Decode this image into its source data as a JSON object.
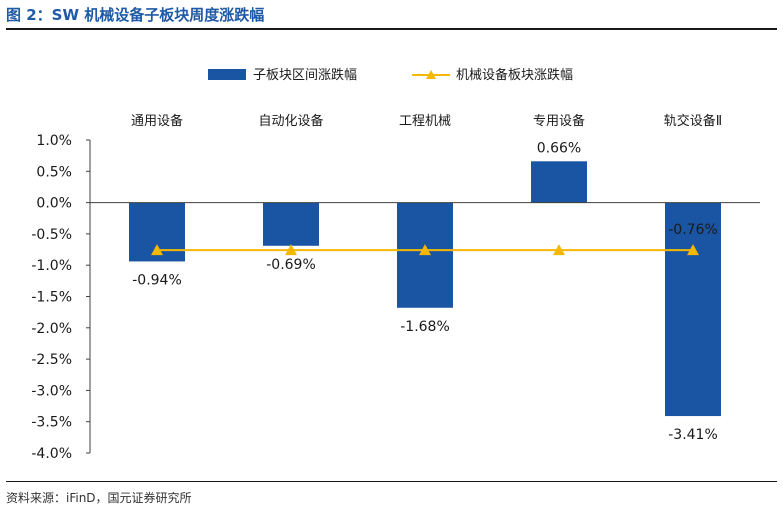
{
  "figure": {
    "title": "图 2：SW 机械设备子板块周度涨跌幅",
    "source": "资料来源：iFinD，国元证券研究所"
  },
  "colors": {
    "bar": "#1a55a3",
    "line": "#f5b800",
    "title": "#1f5aa6",
    "axis": "#404040"
  },
  "chart_data": {
    "type": "bar",
    "title": "",
    "xlabel": "",
    "ylabel": "",
    "categories": [
      "通用设备",
      "自动化设备",
      "工程机械",
      "专用设备",
      "轨交设备Ⅱ"
    ],
    "series": [
      {
        "name": "子板块区间涨跌幅",
        "type": "bar",
        "values": [
          -0.94,
          -0.69,
          -1.68,
          0.66,
          -3.41
        ],
        "labels": [
          "-0.94%",
          "-0.69%",
          "-1.68%",
          "0.66%",
          "-3.41%"
        ]
      },
      {
        "name": "机械设备板块涨跌幅",
        "type": "line",
        "values": [
          -0.76,
          -0.76,
          -0.76,
          -0.76,
          -0.76
        ],
        "labels": [
          "",
          "",
          "",
          "",
          "-0.76%"
        ]
      }
    ],
    "ylim": [
      -4.0,
      1.0
    ],
    "yticks": [
      1.0,
      0.5,
      0.0,
      -0.5,
      -1.0,
      -1.5,
      -2.0,
      -2.5,
      -3.0,
      -3.5,
      -4.0
    ],
    "ytick_labels": [
      "1.0%",
      "0.5%",
      "0.0%",
      "-0.5%",
      "-1.0%",
      "-1.5%",
      "-2.0%",
      "-2.5%",
      "-3.0%",
      "-3.5%",
      "-4.0%"
    ],
    "grid": false,
    "legend": "top",
    "category_label_position": "top"
  }
}
